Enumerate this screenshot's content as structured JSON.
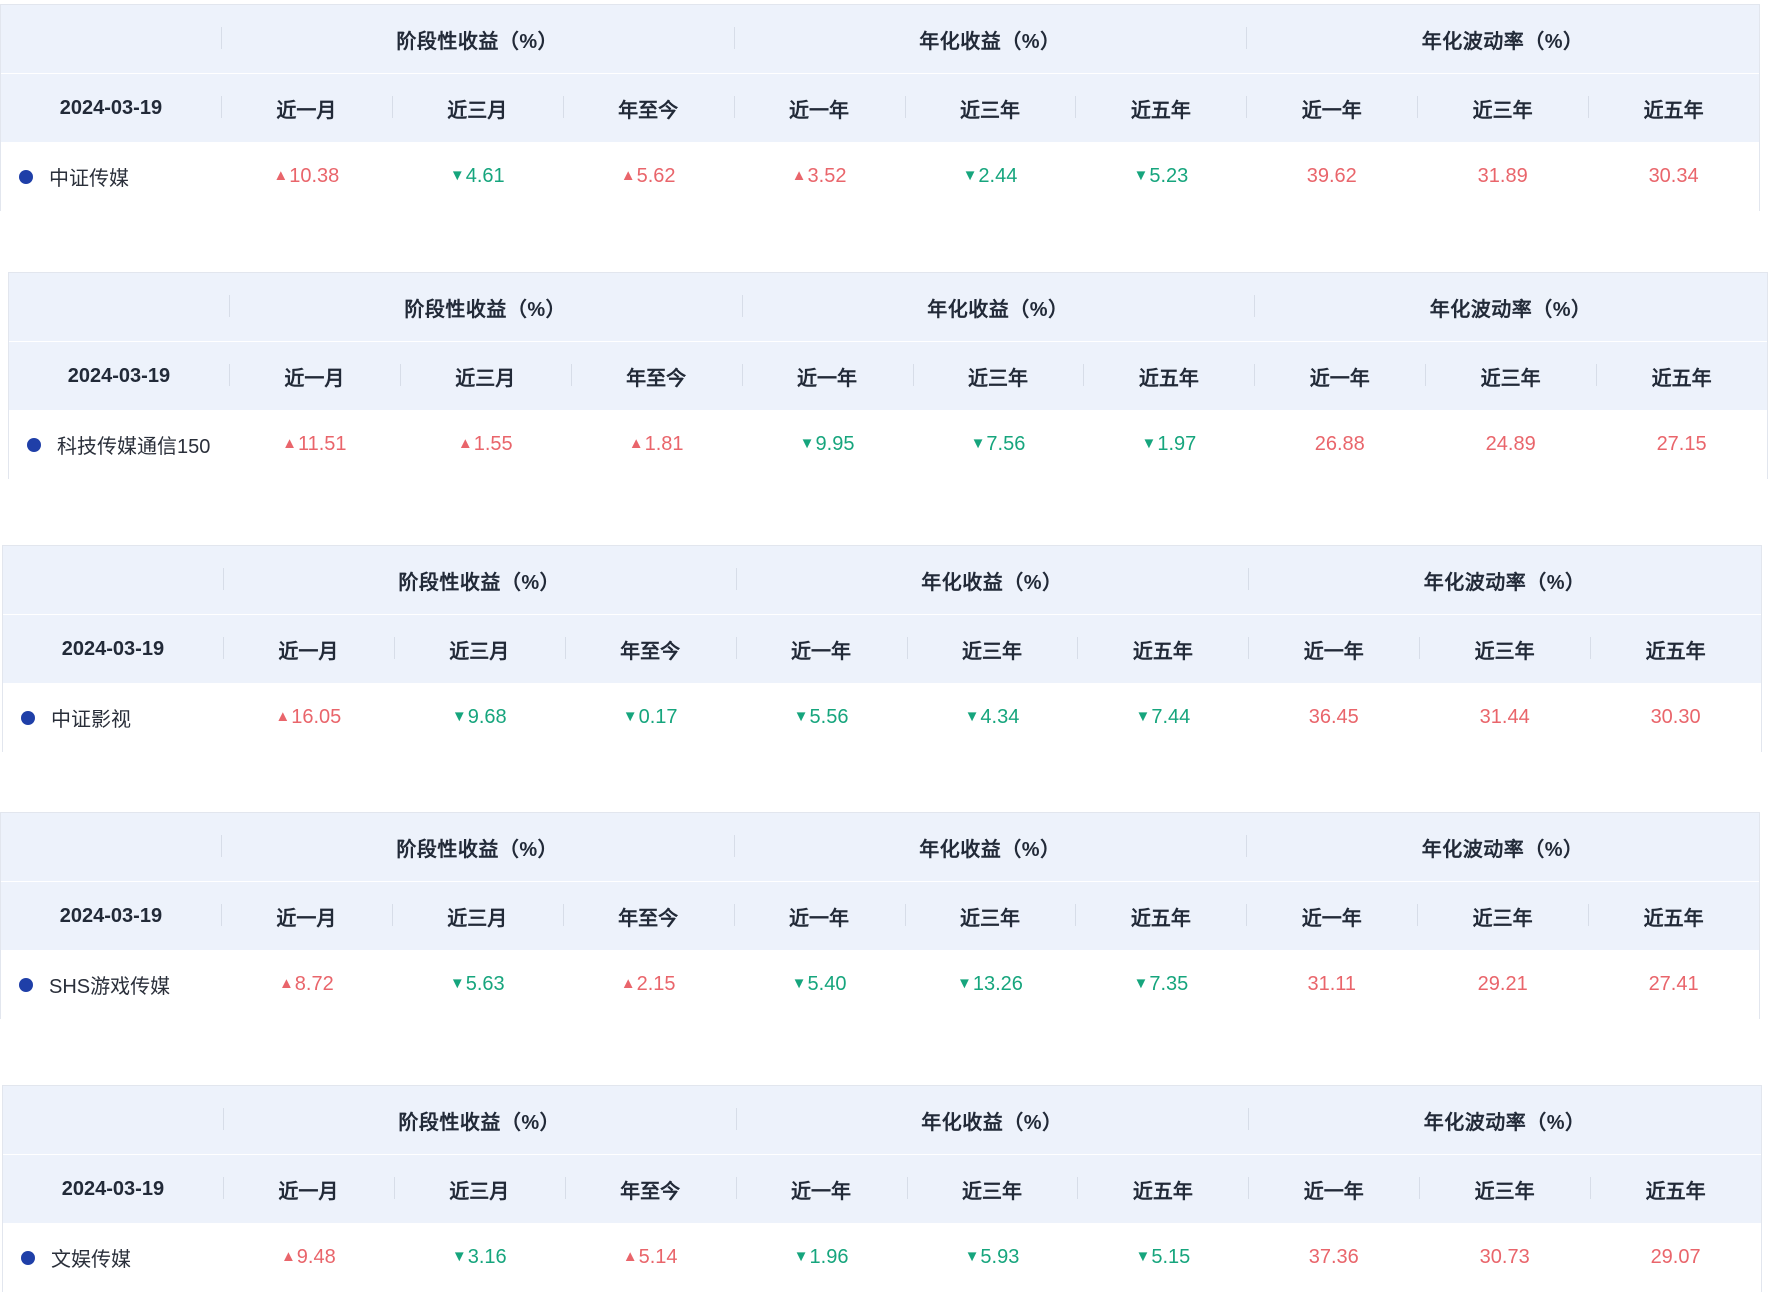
{
  "group_headers": [
    "阶段性收益（%）",
    "年化收益（%）",
    "年化波动率（%）"
  ],
  "column_headers": [
    "近一月",
    "近三月",
    "年至今",
    "近一年",
    "近三年",
    "近五年",
    "近一年",
    "近三年",
    "近五年"
  ],
  "colors": {
    "header_bg": "#edf2fb",
    "up": "#e9656b",
    "down": "#16a57d",
    "dot": "#1f3fa8",
    "text": "#222a38"
  },
  "icons": {
    "up": "▲",
    "down": "▼",
    "bullet": "series-dot-icon"
  },
  "tables": [
    {
      "date": "2024-03-19",
      "name": "中证传媒",
      "values": [
        {
          "dir": "up",
          "text": "10.38"
        },
        {
          "dir": "down",
          "text": "4.61"
        },
        {
          "dir": "up",
          "text": "5.62"
        },
        {
          "dir": "up",
          "text": "3.52"
        },
        {
          "dir": "down",
          "text": "2.44"
        },
        {
          "dir": "down",
          "text": "5.23"
        },
        {
          "dir": "",
          "text": "39.62"
        },
        {
          "dir": "",
          "text": "31.89"
        },
        {
          "dir": "",
          "text": "30.34"
        }
      ]
    },
    {
      "date": "2024-03-19",
      "name": "科技传媒通信150",
      "values": [
        {
          "dir": "up",
          "text": "11.51"
        },
        {
          "dir": "up",
          "text": "1.55"
        },
        {
          "dir": "up",
          "text": "1.81"
        },
        {
          "dir": "down",
          "text": "9.95"
        },
        {
          "dir": "down",
          "text": "7.56"
        },
        {
          "dir": "down",
          "text": "1.97"
        },
        {
          "dir": "",
          "text": "26.88"
        },
        {
          "dir": "",
          "text": "24.89"
        },
        {
          "dir": "",
          "text": "27.15"
        }
      ]
    },
    {
      "date": "2024-03-19",
      "name": "中证影视",
      "values": [
        {
          "dir": "up",
          "text": "16.05"
        },
        {
          "dir": "down",
          "text": "9.68"
        },
        {
          "dir": "down",
          "text": "0.17"
        },
        {
          "dir": "down",
          "text": "5.56"
        },
        {
          "dir": "down",
          "text": "4.34"
        },
        {
          "dir": "down",
          "text": "7.44"
        },
        {
          "dir": "",
          "text": "36.45"
        },
        {
          "dir": "",
          "text": "31.44"
        },
        {
          "dir": "",
          "text": "30.30"
        }
      ]
    },
    {
      "date": "2024-03-19",
      "name": "SHS游戏传媒",
      "values": [
        {
          "dir": "up",
          "text": "8.72"
        },
        {
          "dir": "down",
          "text": "5.63"
        },
        {
          "dir": "up",
          "text": "2.15"
        },
        {
          "dir": "down",
          "text": "5.40"
        },
        {
          "dir": "down",
          "text": "13.26"
        },
        {
          "dir": "down",
          "text": "7.35"
        },
        {
          "dir": "",
          "text": "31.11"
        },
        {
          "dir": "",
          "text": "29.21"
        },
        {
          "dir": "",
          "text": "27.41"
        }
      ]
    },
    {
      "date": "2024-03-19",
      "name": "文娱传媒",
      "values": [
        {
          "dir": "up",
          "text": "9.48"
        },
        {
          "dir": "down",
          "text": "3.16"
        },
        {
          "dir": "up",
          "text": "5.14"
        },
        {
          "dir": "down",
          "text": "1.96"
        },
        {
          "dir": "down",
          "text": "5.93"
        },
        {
          "dir": "down",
          "text": "5.15"
        },
        {
          "dir": "",
          "text": "37.36"
        },
        {
          "dir": "",
          "text": "30.73"
        },
        {
          "dir": "",
          "text": "29.07"
        }
      ]
    }
  ]
}
